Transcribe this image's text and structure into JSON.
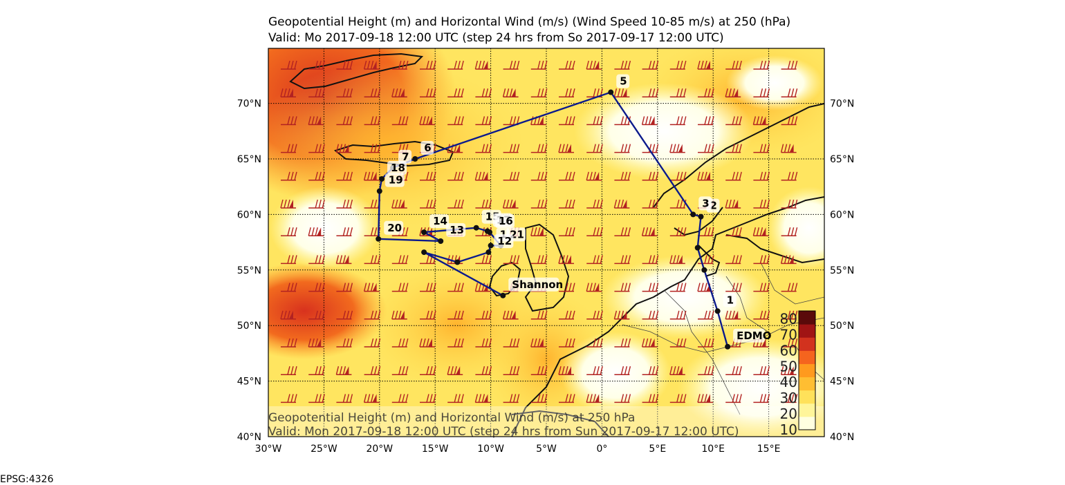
{
  "title": {
    "line1": "Geopotential Height (m) and Horizontal Wind (m/s) (Wind Speed 10-85 m/s) at 250 (hPa)",
    "line2": "Valid: Mo 2017-09-18 12:00 UTC (step 24 hrs from So 2017-09-17 12:00 UTC)"
  },
  "overlay_caption": {
    "line1": "Geopotential Height (m) and Horizontal Wind (m/s) at 250 hPa",
    "line2": "Valid: Mon 2017-09-18 12:00 UTC (step 24 hrs from Sun 2017-09-17 12:00 UTC)"
  },
  "projection_label": "EPSG:4326",
  "axes": {
    "lon_range": [
      -30,
      20
    ],
    "lat_range": [
      40,
      75
    ],
    "lon_ticks": [
      {
        "value": -30,
        "label": "30°W"
      },
      {
        "value": -25,
        "label": "25°W"
      },
      {
        "value": -20,
        "label": "20°W"
      },
      {
        "value": -15,
        "label": "15°W"
      },
      {
        "value": -10,
        "label": "10°W"
      },
      {
        "value": -5,
        "label": "5°W"
      },
      {
        "value": 0,
        "label": "0°"
      },
      {
        "value": 5,
        "label": "5°E"
      },
      {
        "value": 10,
        "label": "10°E"
      },
      {
        "value": 15,
        "label": "15°E"
      }
    ],
    "lat_ticks": [
      {
        "value": 40,
        "label": "40°N"
      },
      {
        "value": 45,
        "label": "45°N"
      },
      {
        "value": 50,
        "label": "50°N"
      },
      {
        "value": 55,
        "label": "55°N"
      },
      {
        "value": 60,
        "label": "60°N"
      },
      {
        "value": 65,
        "label": "65°N"
      },
      {
        "value": 70,
        "label": "70°N"
      }
    ],
    "grid": "dotted"
  },
  "colorbar": {
    "ticks": [
      "10",
      "20",
      "30",
      "40",
      "50",
      "60",
      "70",
      "80"
    ],
    "colors": [
      "#ffffe0",
      "#fff59a",
      "#ffe15a",
      "#ffbe32",
      "#ff9a1e",
      "#f5641e",
      "#d2321e",
      "#a01414",
      "#5a0a0a"
    ],
    "range": [
      10,
      85
    ]
  },
  "route": {
    "color": "#0b1a8c",
    "points": [
      {
        "label": "EDMO",
        "lon": 11.3,
        "lat": 48.1
      },
      {
        "label": "1",
        "lon": 10.4,
        "lat": 51.3
      },
      {
        "label": "",
        "lon": 9.2,
        "lat": 55.0
      },
      {
        "label": "",
        "lon": 8.6,
        "lat": 57.0
      },
      {
        "label": "2",
        "lon": 8.9,
        "lat": 59.8
      },
      {
        "label": "3",
        "lon": 8.2,
        "lat": 60.0
      },
      {
        "label": "5",
        "lon": 0.8,
        "lat": 71.0
      },
      {
        "label": "6",
        "lon": -16.8,
        "lat": 65.0
      },
      {
        "label": "7",
        "lon": -18.8,
        "lat": 64.2
      },
      {
        "label": "18",
        "lon": -19.8,
        "lat": 63.2
      },
      {
        "label": "19",
        "lon": -20.0,
        "lat": 62.1
      },
      {
        "label": "20",
        "lon": -20.1,
        "lat": 57.8
      },
      {
        "label": "13",
        "lon": -14.5,
        "lat": 57.6
      },
      {
        "label": "14",
        "lon": -16.0,
        "lat": 58.4
      },
      {
        "label": "15",
        "lon": -11.3,
        "lat": 58.8
      },
      {
        "label": "17",
        "lon": -10.3,
        "lat": 58.5
      },
      {
        "label": "16",
        "lon": -10.1,
        "lat": 58.4
      },
      {
        "label": "21",
        "lon": -9.1,
        "lat": 57.2
      },
      {
        "label": "1",
        "lon": -10.0,
        "lat": 57.2
      },
      {
        "label": "12",
        "lon": -10.2,
        "lat": 56.6
      },
      {
        "label": "",
        "lon": -13.0,
        "lat": 55.7
      },
      {
        "label": "",
        "lon": -16.0,
        "lat": 56.6
      },
      {
        "label": "Shannon",
        "lon": -8.9,
        "lat": 52.7
      }
    ]
  }
}
